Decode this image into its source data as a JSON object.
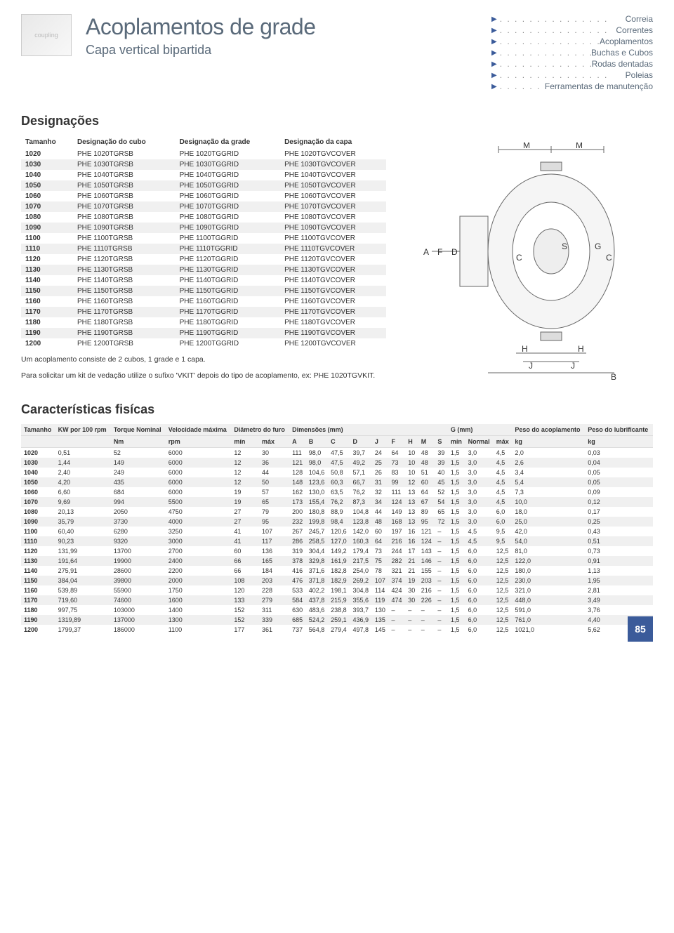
{
  "header": {
    "title": "Acoplamentos de grade",
    "subtitle": "Capa vertical bipartida"
  },
  "nav": [
    "Correia",
    "Correntes",
    "Acoplamentos",
    "Buchas e Cubos",
    "Rodas dentadas",
    "Poleias",
    "Ferramentas de manutenção"
  ],
  "designations": {
    "heading": "Designações",
    "columns": [
      "Tamanho",
      "Designação do cubo",
      "Designação da grade",
      "Designação da capa"
    ],
    "rows": [
      [
        "1020",
        "PHE 1020TGRSB",
        "PHE 1020TGGRID",
        "PHE 1020TGVCOVER"
      ],
      [
        "1030",
        "PHE 1030TGRSB",
        "PHE 1030TGGRID",
        "PHE 1030TGVCOVER"
      ],
      [
        "1040",
        "PHE 1040TGRSB",
        "PHE 1040TGGRID",
        "PHE 1040TGVCOVER"
      ],
      [
        "1050",
        "PHE 1050TGRSB",
        "PHE 1050TGGRID",
        "PHE 1050TGVCOVER"
      ],
      [
        "1060",
        "PHE 1060TGRSB",
        "PHE 1060TGGRID",
        "PHE 1060TGVCOVER"
      ],
      [
        "1070",
        "PHE 1070TGRSB",
        "PHE 1070TGGRID",
        "PHE 1070TGVCOVER"
      ],
      [
        "1080",
        "PHE 1080TGRSB",
        "PHE 1080TGGRID",
        "PHE 1080TGVCOVER"
      ],
      [
        "1090",
        "PHE 1090TGRSB",
        "PHE 1090TGGRID",
        "PHE 1090TGVCOVER"
      ],
      [
        "1100",
        "PHE 1100TGRSB",
        "PHE 1100TGGRID",
        "PHE 1100TGVCOVER"
      ],
      [
        "1110",
        "PHE 1110TGRSB",
        "PHE 1110TGGRID",
        "PHE 1110TGVCOVER"
      ],
      [
        "1120",
        "PHE 1120TGRSB",
        "PHE 1120TGGRID",
        "PHE 1120TGVCOVER"
      ],
      [
        "1130",
        "PHE 1130TGRSB",
        "PHE 1130TGGRID",
        "PHE 1130TGVCOVER"
      ],
      [
        "1140",
        "PHE 1140TGRSB",
        "PHE 1140TGGRID",
        "PHE 1140TGVCOVER"
      ],
      [
        "1150",
        "PHE 1150TGRSB",
        "PHE 1150TGGRID",
        "PHE 1150TGVCOVER"
      ],
      [
        "1160",
        "PHE 1160TGRSB",
        "PHE 1160TGGRID",
        "PHE 1160TGVCOVER"
      ],
      [
        "1170",
        "PHE 1170TGRSB",
        "PHE 1170TGGRID",
        "PHE 1170TGVCOVER"
      ],
      [
        "1180",
        "PHE 1180TGRSB",
        "PHE 1180TGGRID",
        "PHE 1180TGVCOVER"
      ],
      [
        "1190",
        "PHE 1190TGRSB",
        "PHE 1190TGGRID",
        "PHE 1190TGVCOVER"
      ],
      [
        "1200",
        "PHE 1200TGRSB",
        "PHE 1200TGGRID",
        "PHE 1200TGVCOVER"
      ]
    ],
    "note1": "Um acoplamento consiste de 2 cubos, 1 grade e 1 capa.",
    "note2": "Para solicitar um kit de vedação utilize o sufixo 'VKIT' depois do tipo de acoplamento, ex: PHE 1020TGVKIT."
  },
  "diagram": {
    "labels": [
      "A",
      "F",
      "D",
      "M",
      "M",
      "S",
      "G",
      "C",
      "C",
      "H",
      "H",
      "J",
      "J",
      "B"
    ]
  },
  "characteristics": {
    "heading": "Características fisícas",
    "header_top": [
      "Tamanho",
      "KW por 100 rpm",
      "Torque Nominal",
      "Velocidade máxima",
      "Diâmetro do furo",
      "Dimensões (mm)",
      "G (mm)",
      "Peso do acoplamento",
      "Peso do lubrificante"
    ],
    "header_sub": [
      "",
      "",
      "Nm",
      "rpm",
      "mín",
      "máx",
      "A",
      "B",
      "C",
      "D",
      "J",
      "F",
      "H",
      "M",
      "S",
      "mín",
      "Normal",
      "máx",
      "kg",
      "kg"
    ],
    "rows": [
      [
        "1020",
        "0,51",
        "52",
        "6000",
        "12",
        "30",
        "111",
        "98,0",
        "47,5",
        "39,7",
        "24",
        "64",
        "10",
        "48",
        "39",
        "1,5",
        "3,0",
        "4,5",
        "2,0",
        "0,03"
      ],
      [
        "1030",
        "1,44",
        "149",
        "6000",
        "12",
        "36",
        "121",
        "98,0",
        "47,5",
        "49,2",
        "25",
        "73",
        "10",
        "48",
        "39",
        "1,5",
        "3,0",
        "4,5",
        "2,6",
        "0,04"
      ],
      [
        "1040",
        "2,40",
        "249",
        "6000",
        "12",
        "44",
        "128",
        "104,6",
        "50,8",
        "57,1",
        "26",
        "83",
        "10",
        "51",
        "40",
        "1,5",
        "3,0",
        "4,5",
        "3,4",
        "0,05"
      ],
      [
        "1050",
        "4,20",
        "435",
        "6000",
        "12",
        "50",
        "148",
        "123,6",
        "60,3",
        "66,7",
        "31",
        "99",
        "12",
        "60",
        "45",
        "1,5",
        "3,0",
        "4,5",
        "5,4",
        "0,05"
      ],
      [
        "1060",
        "6,60",
        "684",
        "6000",
        "19",
        "57",
        "162",
        "130,0",
        "63,5",
        "76,2",
        "32",
        "111",
        "13",
        "64",
        "52",
        "1,5",
        "3,0",
        "4,5",
        "7,3",
        "0,09"
      ],
      [
        "1070",
        "9,69",
        "994",
        "5500",
        "19",
        "65",
        "173",
        "155,4",
        "76,2",
        "87,3",
        "34",
        "124",
        "13",
        "67",
        "54",
        "1,5",
        "3,0",
        "4,5",
        "10,0",
        "0,12"
      ],
      [
        "1080",
        "20,13",
        "2050",
        "4750",
        "27",
        "79",
        "200",
        "180,8",
        "88,9",
        "104,8",
        "44",
        "149",
        "13",
        "89",
        "65",
        "1,5",
        "3,0",
        "6,0",
        "18,0",
        "0,17"
      ],
      [
        "1090",
        "35,79",
        "3730",
        "4000",
        "27",
        "95",
        "232",
        "199,8",
        "98,4",
        "123,8",
        "48",
        "168",
        "13",
        "95",
        "72",
        "1,5",
        "3,0",
        "6,0",
        "25,0",
        "0,25"
      ],
      [
        "1100",
        "60,40",
        "6280",
        "3250",
        "41",
        "107",
        "267",
        "245,7",
        "120,6",
        "142,0",
        "60",
        "197",
        "16",
        "121",
        "–",
        "1,5",
        "4,5",
        "9,5",
        "42,0",
        "0,43"
      ],
      [
        "1110",
        "90,23",
        "9320",
        "3000",
        "41",
        "117",
        "286",
        "258,5",
        "127,0",
        "160,3",
        "64",
        "216",
        "16",
        "124",
        "–",
        "1,5",
        "4,5",
        "9,5",
        "54,0",
        "0,51"
      ],
      [
        "1120",
        "131,99",
        "13700",
        "2700",
        "60",
        "136",
        "319",
        "304,4",
        "149,2",
        "179,4",
        "73",
        "244",
        "17",
        "143",
        "–",
        "1,5",
        "6,0",
        "12,5",
        "81,0",
        "0,73"
      ],
      [
        "1130",
        "191,64",
        "19900",
        "2400",
        "66",
        "165",
        "378",
        "329,8",
        "161,9",
        "217,5",
        "75",
        "282",
        "21",
        "146",
        "–",
        "1,5",
        "6,0",
        "12,5",
        "122,0",
        "0,91"
      ],
      [
        "1140",
        "275,91",
        "28600",
        "2200",
        "66",
        "184",
        "416",
        "371,6",
        "182,8",
        "254,0",
        "78",
        "321",
        "21",
        "155",
        "–",
        "1,5",
        "6,0",
        "12,5",
        "180,0",
        "1,13"
      ],
      [
        "1150",
        "384,04",
        "39800",
        "2000",
        "108",
        "203",
        "476",
        "371,8",
        "182,9",
        "269,2",
        "107",
        "374",
        "19",
        "203",
        "–",
        "1,5",
        "6,0",
        "12,5",
        "230,0",
        "1,95"
      ],
      [
        "1160",
        "539,89",
        "55900",
        "1750",
        "120",
        "228",
        "533",
        "402,2",
        "198,1",
        "304,8",
        "114",
        "424",
        "30",
        "216",
        "–",
        "1,5",
        "6,0",
        "12,5",
        "321,0",
        "2,81"
      ],
      [
        "1170",
        "719,60",
        "74600",
        "1600",
        "133",
        "279",
        "584",
        "437,8",
        "215,9",
        "355,6",
        "119",
        "474",
        "30",
        "226",
        "–",
        "1,5",
        "6,0",
        "12,5",
        "448,0",
        "3,49"
      ],
      [
        "1180",
        "997,75",
        "103000",
        "1400",
        "152",
        "311",
        "630",
        "483,6",
        "238,8",
        "393,7",
        "130",
        "–",
        "–",
        "–",
        "–",
        "1,5",
        "6,0",
        "12,5",
        "591,0",
        "3,76"
      ],
      [
        "1190",
        "1319,89",
        "137000",
        "1300",
        "152",
        "339",
        "685",
        "524,2",
        "259,1",
        "436,9",
        "135",
        "–",
        "–",
        "–",
        "–",
        "1,5",
        "6,0",
        "12,5",
        "761,0",
        "4,40"
      ],
      [
        "1200",
        "1799,37",
        "186000",
        "1100",
        "177",
        "361",
        "737",
        "564,8",
        "279,4",
        "497,8",
        "145",
        "–",
        "–",
        "–",
        "–",
        "1,5",
        "6,0",
        "12,5",
        "1021,0",
        "5,62"
      ]
    ]
  },
  "colors": {
    "accent": "#3b5b9a",
    "shade_row": "#f0f0f0",
    "title_color": "#5a6a7a"
  },
  "page_number": "85"
}
